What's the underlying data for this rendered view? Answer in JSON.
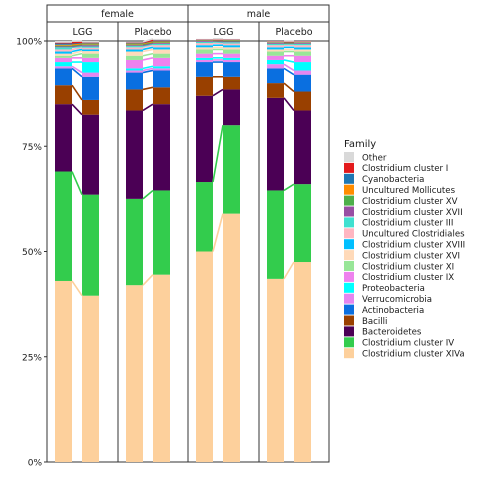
{
  "chart_data": {
    "type": "bar",
    "subtype": "stacked-100-percent",
    "facet_rows": [
      "female",
      "male"
    ],
    "facet_cols": [
      "LGG",
      "Placebo"
    ],
    "y_ticks": [
      "0%",
      "25%",
      "50%",
      "75%",
      "100%"
    ],
    "ylim": [
      0,
      1
    ],
    "legend": {
      "title": "Family",
      "position": "right",
      "entries": [
        {
          "name": "Other",
          "color": "#D9D9D9"
        },
        {
          "name": "Clostridium cluster I",
          "color": "#E31A1C"
        },
        {
          "name": "Cyanobacteria",
          "color": "#1F78B4"
        },
        {
          "name": "Uncultured Mollicutes",
          "color": "#FF8C00"
        },
        {
          "name": "Clostridium cluster XV",
          "color": "#4DAF4A"
        },
        {
          "name": "Clostridium cluster XVII",
          "color": "#984EA3"
        },
        {
          "name": "Clostridium cluster III",
          "color": "#40E0D0"
        },
        {
          "name": "Uncultured Clostridiales",
          "color": "#FFB6C1"
        },
        {
          "name": "Clostridium cluster XVIII",
          "color": "#00BFFF"
        },
        {
          "name": "Clostridium cluster XVI",
          "color": "#FFDAB9"
        },
        {
          "name": "Clostridium cluster XI",
          "color": "#98E698"
        },
        {
          "name": "Clostridium cluster IX",
          "color": "#EE82EE"
        },
        {
          "name": "Proteobacteria",
          "color": "#00FFFF"
        },
        {
          "name": "Verrucomicrobia",
          "color": "#E586F0"
        },
        {
          "name": "Actinobacteria",
          "color": "#0A6FE0"
        },
        {
          "name": "Bacilli",
          "color": "#994000"
        },
        {
          "name": "Bacteroidetes",
          "color": "#4B0055"
        },
        {
          "name": "Clostridium cluster IV",
          "color": "#33CC4D"
        },
        {
          "name": "Clostridium cluster XIVa",
          "color": "#FDD09C"
        }
      ]
    },
    "facets": [
      {
        "sex": "female",
        "groups": [
          {
            "label": "LGG",
            "bars": [
              {
                "values": {
                  "Clostridium cluster XIVa": 0.43,
                  "Clostridium cluster IV": 0.26,
                  "Bacteroidetes": 0.16,
                  "Bacilli": 0.045,
                  "Actinobacteria": 0.04,
                  "Verrucomicrobia": 0.005,
                  "Proteobacteria": 0.01,
                  "Clostridium cluster IX": 0.01,
                  "Clostridium cluster XI": 0.005,
                  "Clostridium cluster XVI": 0.005,
                  "Clostridium cluster XVIII": 0.005,
                  "Uncultured Clostridiales": 0.005,
                  "Clostridium cluster III": 0.005,
                  "Clostridium cluster XVII": 0.002,
                  "Clostridium cluster XV": 0.002,
                  "Uncultured Mollicutes": 0.002,
                  "Cyanobacteria": 0.003,
                  "Clostridium cluster I": 0.002,
                  "Other": 0.004
                }
              },
              {
                "values": {
                  "Clostridium cluster XIVa": 0.395,
                  "Clostridium cluster IV": 0.24,
                  "Bacteroidetes": 0.19,
                  "Bacilli": 0.035,
                  "Actinobacteria": 0.055,
                  "Verrucomicrobia": 0.01,
                  "Proteobacteria": 0.025,
                  "Clostridium cluster IX": 0.01,
                  "Clostridium cluster XI": 0.01,
                  "Clostridium cluster XVI": 0.006,
                  "Clostridium cluster XVIII": 0.004,
                  "Uncultured Clostridiales": 0.004,
                  "Clostridium cluster III": 0.003,
                  "Clostridium cluster XVII": 0.003,
                  "Clostridium cluster XV": 0.002,
                  "Uncultured Mollicutes": 0.002,
                  "Cyanobacteria": 0.002,
                  "Clostridium cluster I": 0.001,
                  "Other": 0.003
                }
              }
            ]
          },
          {
            "label": "Placebo",
            "bars": [
              {
                "values": {
                  "Clostridium cluster XIVa": 0.42,
                  "Clostridium cluster IV": 0.205,
                  "Bacteroidetes": 0.21,
                  "Bacilli": 0.05,
                  "Actinobacteria": 0.04,
                  "Verrucomicrobia": 0.005,
                  "Proteobacteria": 0.005,
                  "Clostridium cluster IX": 0.02,
                  "Clostridium cluster XI": 0.01,
                  "Clostridium cluster XVI": 0.01,
                  "Clostridium cluster XVIII": 0.005,
                  "Uncultured Clostridiales": 0.005,
                  "Clostridium cluster III": 0.003,
                  "Clostridium cluster XVII": 0.002,
                  "Clostridium cluster XV": 0.002,
                  "Uncultured Mollicutes": 0.002,
                  "Cyanobacteria": 0.002,
                  "Clostridium cluster I": 0.001,
                  "Other": 0.001
                }
              },
              {
                "values": {
                  "Clostridium cluster XIVa": 0.445,
                  "Clostridium cluster IV": 0.2,
                  "Bacteroidetes": 0.205,
                  "Bacilli": 0.04,
                  "Actinobacteria": 0.04,
                  "Verrucomicrobia": 0.005,
                  "Proteobacteria": 0.005,
                  "Clostridium cluster IX": 0.02,
                  "Clostridium cluster XI": 0.01,
                  "Clostridium cluster XVI": 0.01,
                  "Clostridium cluster XVIII": 0.005,
                  "Uncultured Clostridiales": 0.005,
                  "Clostridium cluster III": 0.003,
                  "Clostridium cluster XVII": 0.002,
                  "Clostridium cluster XV": 0.002,
                  "Uncultured Mollicutes": 0.002,
                  "Cyanobacteria": 0.002,
                  "Clostridium cluster I": 0.001,
                  "Other": 0.003
                }
              }
            ]
          }
        ]
      },
      {
        "sex": "male",
        "groups": [
          {
            "label": "LGG",
            "bars": [
              {
                "values": {
                  "Clostridium cluster XIVa": 0.5,
                  "Clostridium cluster IV": 0.165,
                  "Bacteroidetes": 0.205,
                  "Bacilli": 0.045,
                  "Actinobacteria": 0.035,
                  "Verrucomicrobia": 0.005,
                  "Proteobacteria": 0.005,
                  "Clostridium cluster IX": 0.01,
                  "Clostridium cluster XI": 0.01,
                  "Clostridium cluster XVI": 0.005,
                  "Clostridium cluster XVIII": 0.005,
                  "Uncultured Clostridiales": 0.005,
                  "Clostridium cluster III": 0.003,
                  "Clostridium cluster XVII": 0.002,
                  "Clostridium cluster XV": 0.001,
                  "Uncultured Mollicutes": 0.001,
                  "Cyanobacteria": 0.001,
                  "Clostridium cluster I": 0.001,
                  "Other": 0.001
                }
              },
              {
                "values": {
                  "Clostridium cluster XIVa": 0.59,
                  "Clostridium cluster IV": 0.21,
                  "Bacteroidetes": 0.085,
                  "Bacilli": 0.03,
                  "Actinobacteria": 0.035,
                  "Verrucomicrobia": 0.005,
                  "Proteobacteria": 0.005,
                  "Clostridium cluster IX": 0.01,
                  "Clostridium cluster XI": 0.01,
                  "Clostridium cluster XVI": 0.005,
                  "Clostridium cluster XVIII": 0.005,
                  "Uncultured Clostridiales": 0.004,
                  "Clostridium cluster III": 0.003,
                  "Clostridium cluster XVII": 0.002,
                  "Clostridium cluster XV": 0.002,
                  "Uncultured Mollicutes": 0.001,
                  "Cyanobacteria": 0.001,
                  "Clostridium cluster I": 0.001,
                  "Other": 0.001
                }
              }
            ]
          },
          {
            "label": "Placebo",
            "bars": [
              {
                "values": {
                  "Clostridium cluster XIVa": 0.435,
                  "Clostridium cluster IV": 0.21,
                  "Bacteroidetes": 0.22,
                  "Bacilli": 0.035,
                  "Actinobacteria": 0.035,
                  "Verrucomicrobia": 0.01,
                  "Proteobacteria": 0.01,
                  "Clostridium cluster IX": 0.01,
                  "Clostridium cluster XI": 0.01,
                  "Clostridium cluster XVI": 0.005,
                  "Clostridium cluster XVIII": 0.005,
                  "Uncultured Clostridiales": 0.005,
                  "Clostridium cluster III": 0.003,
                  "Clostridium cluster XVII": 0.002,
                  "Clostridium cluster XV": 0.001,
                  "Uncultured Mollicutes": 0.001,
                  "Cyanobacteria": 0.001,
                  "Clostridium cluster I": 0.001,
                  "Other": 0.001
                }
              },
              {
                "values": {
                  "Clostridium cluster XIVa": 0.475,
                  "Clostridium cluster IV": 0.185,
                  "Bacteroidetes": 0.175,
                  "Bacilli": 0.045,
                  "Actinobacteria": 0.04,
                  "Verrucomicrobia": 0.01,
                  "Proteobacteria": 0.02,
                  "Clostridium cluster IX": 0.015,
                  "Clostridium cluster XI": 0.01,
                  "Clostridium cluster XVI": 0.005,
                  "Clostridium cluster XVIII": 0.005,
                  "Uncultured Clostridiales": 0.005,
                  "Clostridium cluster III": 0.003,
                  "Clostridium cluster XVII": 0.002,
                  "Clostridium cluster XV": 0.001,
                  "Uncultured Mollicutes": 0.001,
                  "Cyanobacteria": 0.001,
                  "Clostridium cluster I": 0.001,
                  "Other": 0.001
                }
              }
            ]
          }
        ]
      }
    ]
  }
}
